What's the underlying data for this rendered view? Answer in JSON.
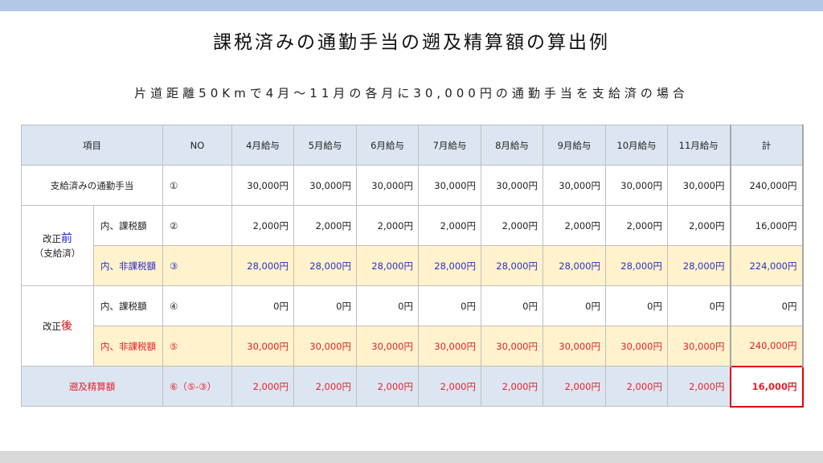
{
  "title": "課税済みの通勤手当の遡及精算額の算出例",
  "subtitle": "片道距離50Kmで4月～11月の各月に30,000円の通勤手当を支給済の場合",
  "table": {
    "headers": [
      "項目",
      "NO",
      "4月給与",
      "5月給与",
      "6月給与",
      "7月給与",
      "8月給与",
      "9月給与",
      "10月給与",
      "11月給与",
      "計"
    ],
    "paid": {
      "label": "支給済みの通勤手当",
      "no": "①",
      "values": [
        "30,000円",
        "30,000円",
        "30,000円",
        "30,000円",
        "30,000円",
        "30,000円",
        "30,000円",
        "30,000円"
      ],
      "total": "240,000円"
    },
    "before": {
      "group_prefix": "改正",
      "group_accent": "前",
      "group_sub": "（支給済）",
      "taxable": {
        "label": "内、課税額",
        "no": "②",
        "values": [
          "2,000円",
          "2,000円",
          "2,000円",
          "2,000円",
          "2,000円",
          "2,000円",
          "2,000円",
          "2,000円"
        ],
        "total": "16,000円"
      },
      "nontaxable": {
        "label": "内、非課税額",
        "no": "③",
        "values": [
          "28,000円",
          "28,000円",
          "28,000円",
          "28,000円",
          "28,000円",
          "28,000円",
          "28,000円",
          "28,000円"
        ],
        "total": "224,000円"
      }
    },
    "after": {
      "group_prefix": "改正",
      "group_accent": "後",
      "taxable": {
        "label": "内、課税額",
        "no": "④",
        "values": [
          "0円",
          "0円",
          "0円",
          "0円",
          "0円",
          "0円",
          "0円",
          "0円"
        ],
        "total": "0円"
      },
      "nontaxable": {
        "label": "内、非課税額",
        "no": "⑤",
        "values": [
          "30,000円",
          "30,000円",
          "30,000円",
          "30,000円",
          "30,000円",
          "30,000円",
          "30,000円",
          "30,000円"
        ],
        "total": "240,000円"
      }
    },
    "settlement": {
      "label": "遡及精算額",
      "no": "⑥（⑤-③）",
      "values": [
        "2,000円",
        "2,000円",
        "2,000円",
        "2,000円",
        "2,000円",
        "2,000円",
        "2,000円",
        "2,000円"
      ],
      "total": "16,000円"
    }
  },
  "colors": {
    "header_bg": "#dce6f2",
    "highlight_row_bg": "#fff2cc",
    "blue_text": "#2e2ec8",
    "red_text": "#e8212a",
    "total_border": "#e00000",
    "top_band": "#b4c7e7"
  }
}
